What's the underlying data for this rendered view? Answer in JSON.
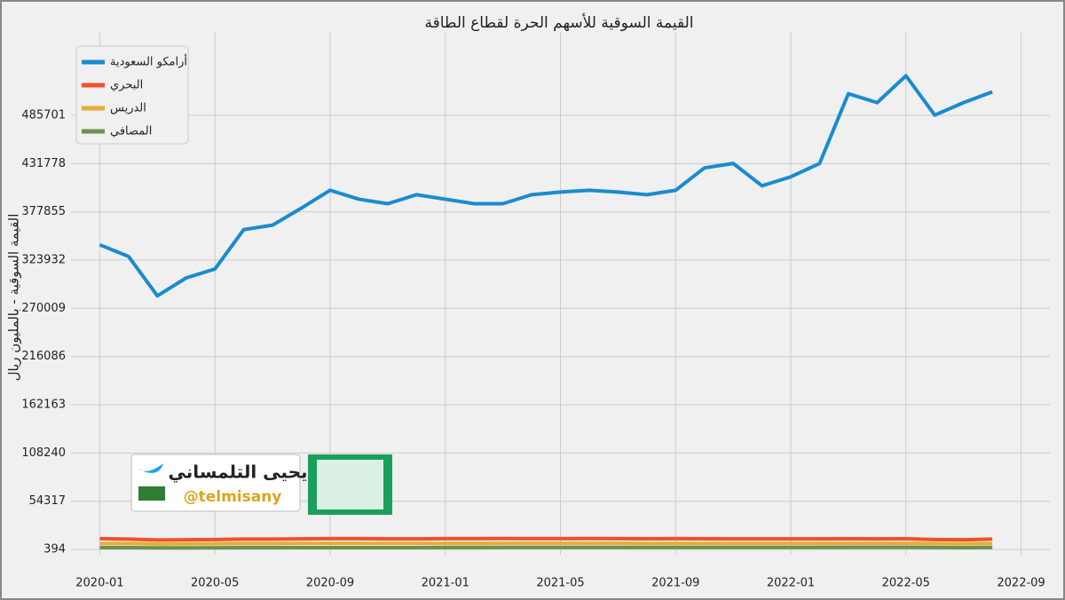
{
  "chart_data": {
    "type": "line",
    "title": "القيمة السوقية للأسهم الحرة لقطاع الطاقة",
    "y_label": "القيمة السوقية - بالمليون ريال",
    "x": [
      "2020-01",
      "2020-02",
      "2020-03",
      "2020-04",
      "2020-05",
      "2020-06",
      "2020-07",
      "2020-08",
      "2020-09",
      "2020-10",
      "2020-11",
      "2020-12",
      "2021-01",
      "2021-02",
      "2021-03",
      "2021-04",
      "2021-05",
      "2021-06",
      "2021-07",
      "2021-08",
      "2021-09",
      "2021-10",
      "2021-11",
      "2021-12",
      "2022-01",
      "2022-02",
      "2022-03",
      "2022-04",
      "2022-05",
      "2022-06",
      "2022-07",
      "2022-08"
    ],
    "xlim": [
      "2019-12",
      "2022-10"
    ],
    "xticks": [
      "2020-01",
      "2020-05",
      "2020-09",
      "2021-01",
      "2021-05",
      "2021-09",
      "2022-01",
      "2022-05",
      "2022-09"
    ],
    "ylim": [
      -5500,
      579000
    ],
    "yticks": [
      394,
      54317,
      108240,
      162163,
      216086,
      270009,
      323932,
      377855,
      431778,
      485701
    ],
    "grid": true,
    "legend": "upper left",
    "series": [
      {
        "name": "أرامكو السعودية",
        "color": "#1a8bd0",
        "values": [
          341000,
          328000,
          284000,
          304000,
          314000,
          358000,
          363000,
          382000,
          402000,
          392000,
          387000,
          397000,
          392000,
          387000,
          387000,
          397000,
          400000,
          402000,
          400000,
          397000,
          402000,
          427000,
          432000,
          407000,
          417000,
          432000,
          510000,
          500000,
          530000,
          486000,
          500000,
          512000
        ]
      },
      {
        "name": "البحري",
        "color": "#f0502a",
        "values": [
          12500,
          12000,
          11000,
          11200,
          11500,
          12000,
          12000,
          12200,
          12500,
          12500,
          12300,
          12200,
          12500,
          12500,
          12600,
          12500,
          12500,
          12600,
          12500,
          12400,
          12500,
          12400,
          12300,
          12200,
          12200,
          12300,
          12400,
          12300,
          12400,
          11500,
          11200,
          12000
        ]
      },
      {
        "name": "الدريس",
        "color": "#e5ae38",
        "values": [
          7000,
          7000,
          6500,
          6600,
          6800,
          7000,
          7000,
          7100,
          7200,
          7200,
          7100,
          7100,
          7200,
          7200,
          7300,
          7300,
          7300,
          7300,
          7300,
          7200,
          7200,
          7200,
          7100,
          7100,
          7100,
          7200,
          7300,
          7300,
          7300,
          6900,
          6800,
          7000
        ]
      },
      {
        "name": "المصافي",
        "color": "#6d904f",
        "values": [
          2400,
          2400,
          2200,
          2200,
          2300,
          2400,
          2400,
          2500,
          2500,
          2500,
          2500,
          2500,
          2600,
          2600,
          2700,
          2700,
          2700,
          2700,
          2700,
          2700,
          2700,
          2700,
          2700,
          2700,
          2700,
          2700,
          2800,
          2800,
          2800,
          2600,
          2500,
          2600
        ]
      }
    ]
  },
  "watermark": {
    "name": "يحيى التلمساني",
    "handle": "@telmisany"
  }
}
